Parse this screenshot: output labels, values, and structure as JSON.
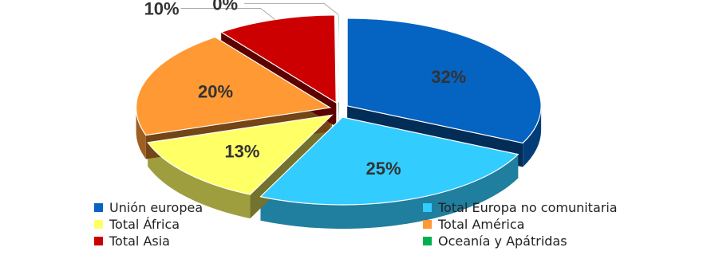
{
  "chart_data": {
    "type": "pie",
    "style": "3d-exploded",
    "categories": [
      "Unión europea",
      "Total Europa no comunitaria",
      "Total África",
      "Total América",
      "Total Asia",
      "Oceanía y Apátridas"
    ],
    "values": [
      32,
      25,
      13,
      20,
      10,
      0
    ],
    "labels": [
      "32%",
      "25%",
      "13%",
      "20%",
      "10%",
      "0%"
    ],
    "colors": [
      "#0563C1",
      "#33CCFF",
      "#FFFF66",
      "#FF9933",
      "#CC0000",
      "#00B050"
    ],
    "legend_position": "bottom"
  }
}
